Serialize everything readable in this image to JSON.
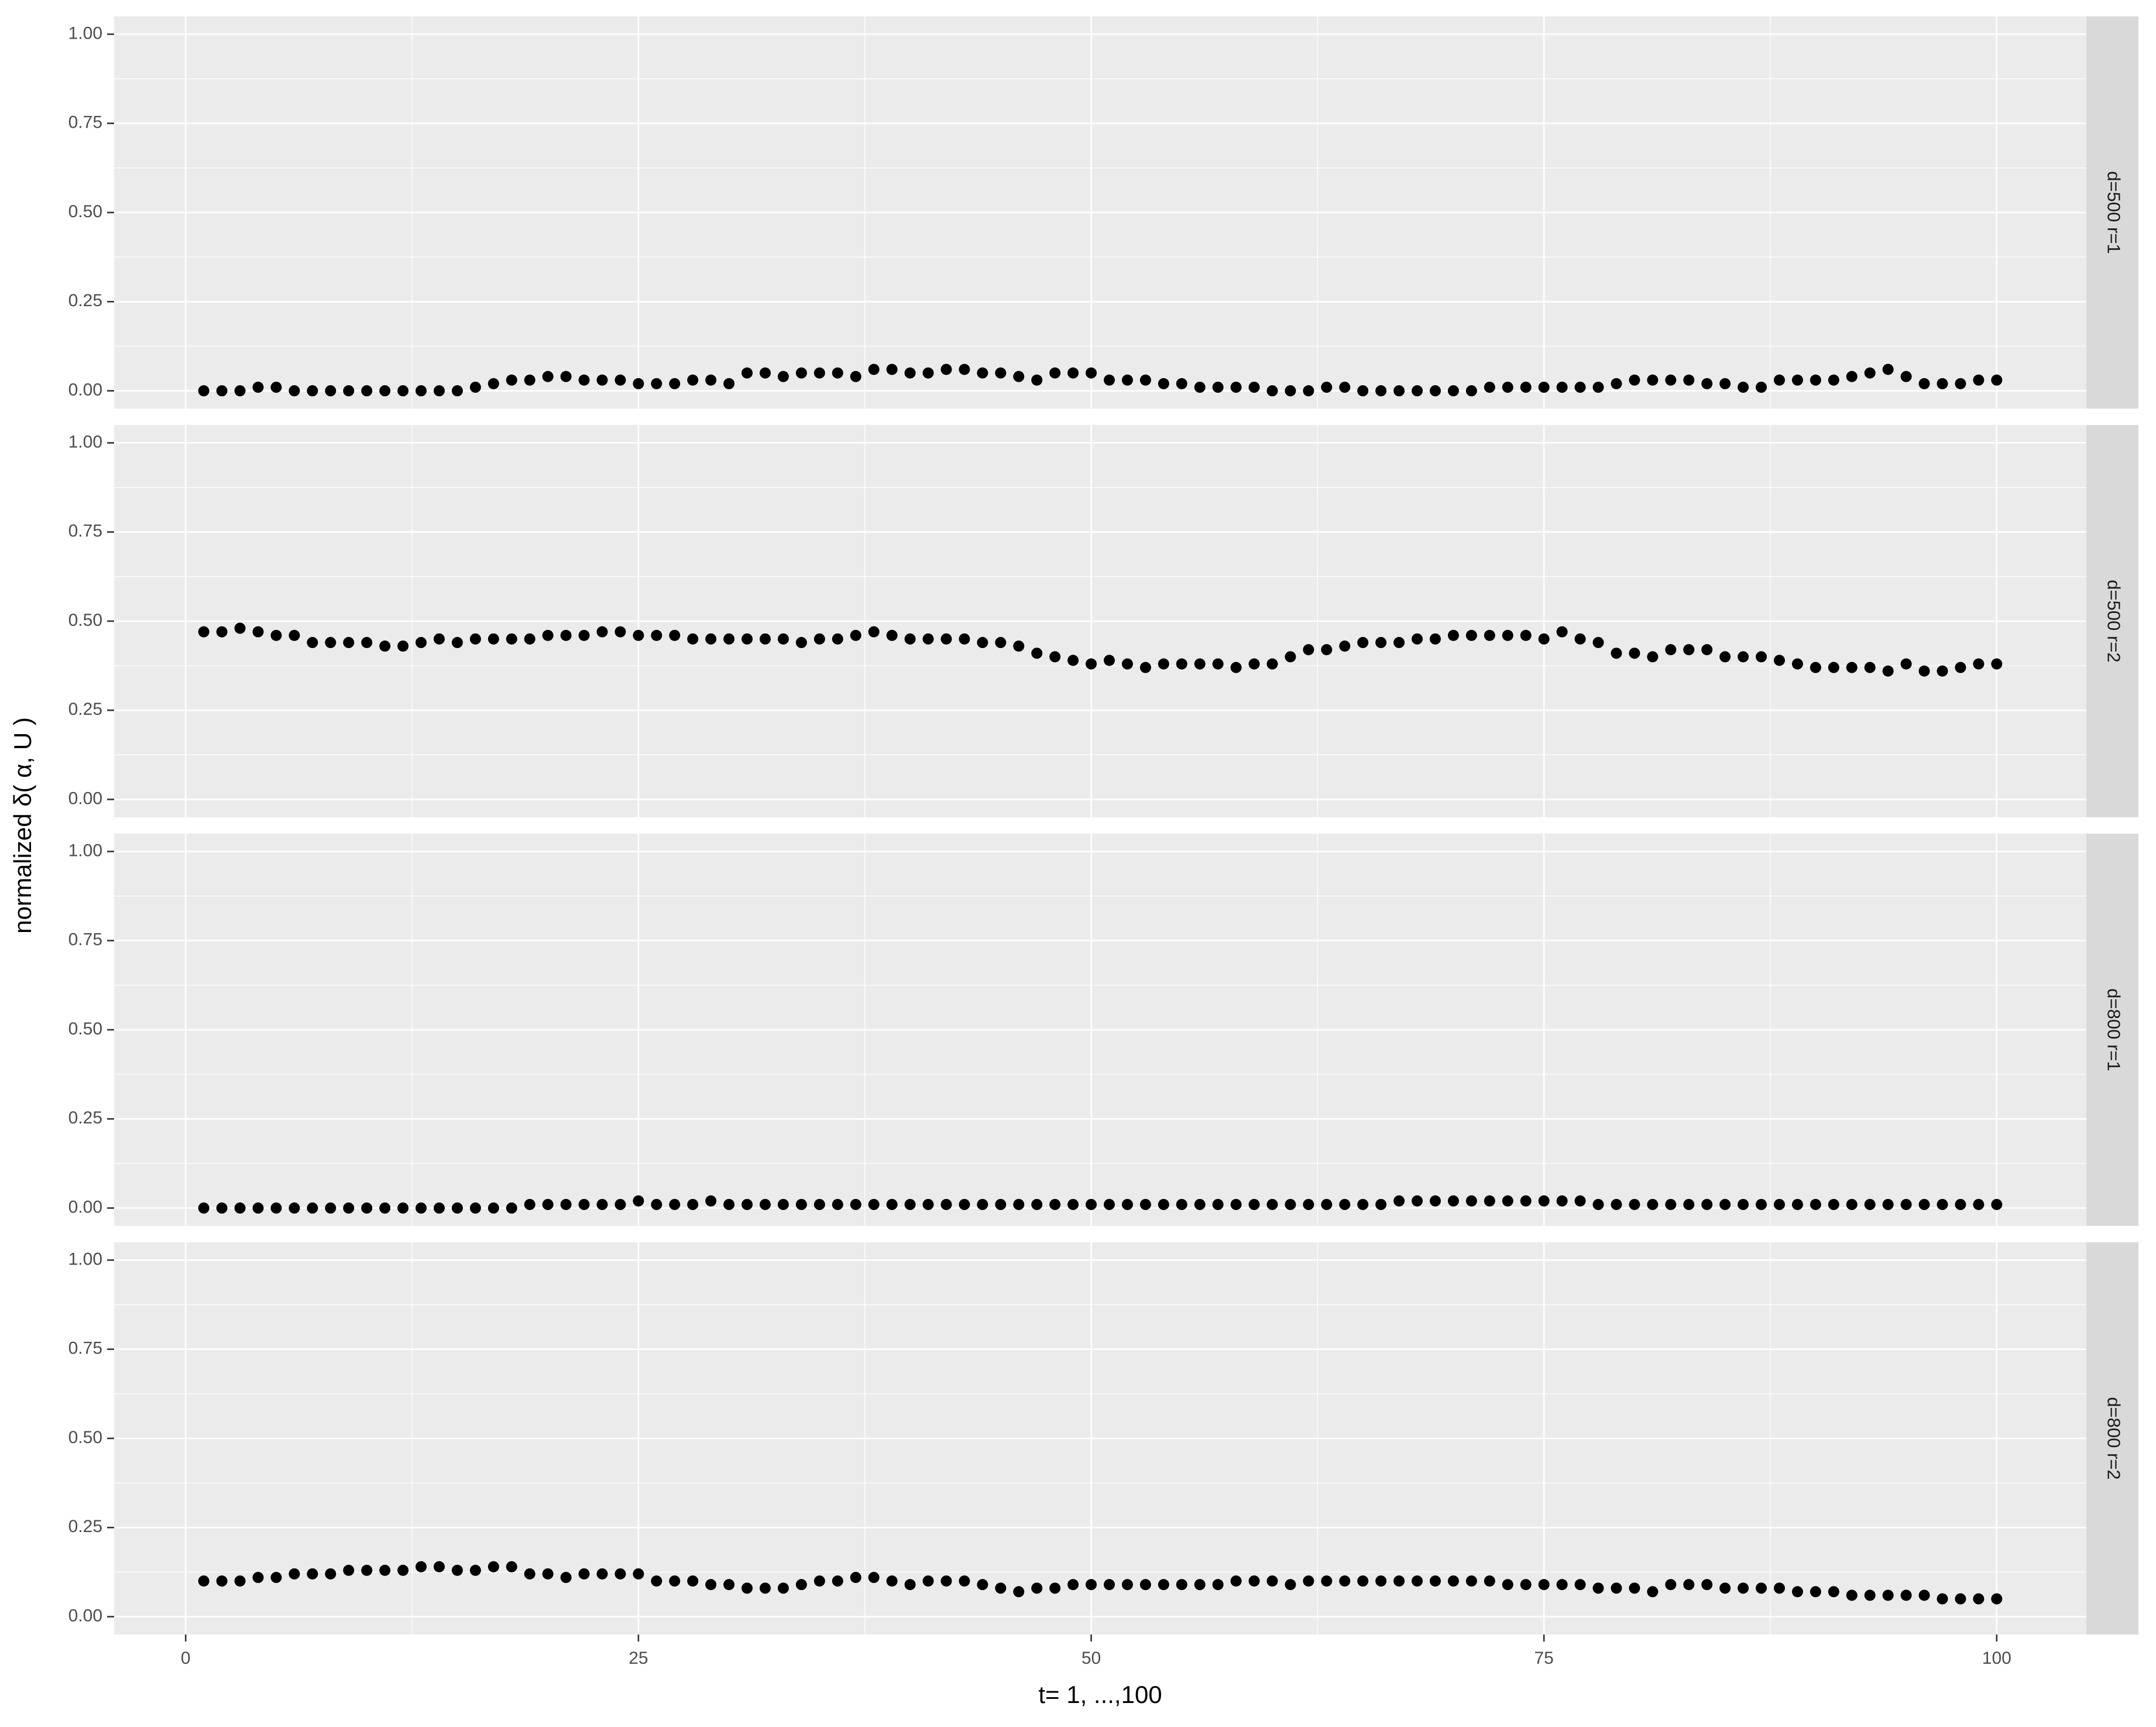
{
  "chart_data": {
    "type": "scatter",
    "xlabel": "t= 1, ...,100",
    "ylabel": "normalized δ( α, U )",
    "x": [
      1,
      2,
      3,
      4,
      5,
      6,
      7,
      8,
      9,
      10,
      11,
      12,
      13,
      14,
      15,
      16,
      17,
      18,
      19,
      20,
      21,
      22,
      23,
      24,
      25,
      26,
      27,
      28,
      29,
      30,
      31,
      32,
      33,
      34,
      35,
      36,
      37,
      38,
      39,
      40,
      41,
      42,
      43,
      44,
      45,
      46,
      47,
      48,
      49,
      50,
      51,
      52,
      53,
      54,
      55,
      56,
      57,
      58,
      59,
      60,
      61,
      62,
      63,
      64,
      65,
      66,
      67,
      68,
      69,
      70,
      71,
      72,
      73,
      74,
      75,
      76,
      77,
      78,
      79,
      80,
      81,
      82,
      83,
      84,
      85,
      86,
      87,
      88,
      89,
      90,
      91,
      92,
      93,
      94,
      95,
      96,
      97,
      98,
      99,
      100
    ],
    "xlim": [
      -3.95,
      104.95
    ],
    "xticks": [
      0,
      25,
      50,
      75,
      100
    ],
    "ylim": [
      -0.05,
      1.05
    ],
    "yticks": [
      {
        "value": 0,
        "label": "0.00"
      },
      {
        "value": 0.25,
        "label": "0.25"
      },
      {
        "value": 0.5,
        "label": "0.50"
      },
      {
        "value": 0.75,
        "label": "0.75"
      },
      {
        "value": 1,
        "label": "1.00"
      }
    ],
    "grid": true,
    "color": "#000000",
    "facets": [
      {
        "label": "d=500 r=1",
        "values": [
          0.0,
          0.0,
          0.0,
          0.01,
          0.01,
          0.0,
          0.0,
          0.0,
          0.0,
          0.0,
          0.0,
          0.0,
          0.0,
          0.0,
          0.0,
          0.01,
          0.02,
          0.03,
          0.03,
          0.04,
          0.04,
          0.03,
          0.03,
          0.03,
          0.02,
          0.02,
          0.02,
          0.03,
          0.03,
          0.02,
          0.05,
          0.05,
          0.04,
          0.05,
          0.05,
          0.05,
          0.04,
          0.06,
          0.06,
          0.05,
          0.05,
          0.06,
          0.06,
          0.05,
          0.05,
          0.04,
          0.03,
          0.05,
          0.05,
          0.05,
          0.03,
          0.03,
          0.03,
          0.02,
          0.02,
          0.01,
          0.01,
          0.01,
          0.01,
          0.0,
          0.0,
          0.0,
          0.01,
          0.01,
          0.0,
          0.0,
          0.0,
          0.0,
          0.0,
          0.0,
          0.0,
          0.01,
          0.01,
          0.01,
          0.01,
          0.01,
          0.01,
          0.01,
          0.02,
          0.03,
          0.03,
          0.03,
          0.03,
          0.02,
          0.02,
          0.01,
          0.01,
          0.03,
          0.03,
          0.03,
          0.03,
          0.04,
          0.05,
          0.06,
          0.04,
          0.02,
          0.02,
          0.02,
          0.03,
          0.03
        ]
      },
      {
        "label": "d=500 r=2",
        "values": [
          0.47,
          0.47,
          0.48,
          0.47,
          0.46,
          0.46,
          0.44,
          0.44,
          0.44,
          0.44,
          0.43,
          0.43,
          0.44,
          0.45,
          0.44,
          0.45,
          0.45,
          0.45,
          0.45,
          0.46,
          0.46,
          0.46,
          0.47,
          0.47,
          0.46,
          0.46,
          0.46,
          0.45,
          0.45,
          0.45,
          0.45,
          0.45,
          0.45,
          0.44,
          0.45,
          0.45,
          0.46,
          0.47,
          0.46,
          0.45,
          0.45,
          0.45,
          0.45,
          0.44,
          0.44,
          0.43,
          0.41,
          0.4,
          0.39,
          0.38,
          0.39,
          0.38,
          0.37,
          0.38,
          0.38,
          0.38,
          0.38,
          0.37,
          0.38,
          0.38,
          0.4,
          0.42,
          0.42,
          0.43,
          0.44,
          0.44,
          0.44,
          0.45,
          0.45,
          0.46,
          0.46,
          0.46,
          0.46,
          0.46,
          0.45,
          0.47,
          0.45,
          0.44,
          0.41,
          0.41,
          0.4,
          0.42,
          0.42,
          0.42,
          0.4,
          0.4,
          0.4,
          0.39,
          0.38,
          0.37,
          0.37,
          0.37,
          0.37,
          0.36,
          0.38,
          0.36,
          0.36,
          0.37,
          0.38,
          0.38
        ]
      },
      {
        "label": "d=800 r=1",
        "values": [
          0.0,
          0.0,
          0.0,
          0.0,
          0.0,
          0.0,
          0.0,
          0.0,
          0.0,
          0.0,
          0.0,
          0.0,
          0.0,
          0.0,
          0.0,
          0.0,
          0.0,
          0.0,
          0.01,
          0.01,
          0.01,
          0.01,
          0.01,
          0.01,
          0.02,
          0.01,
          0.01,
          0.01,
          0.02,
          0.01,
          0.01,
          0.01,
          0.01,
          0.01,
          0.01,
          0.01,
          0.01,
          0.01,
          0.01,
          0.01,
          0.01,
          0.01,
          0.01,
          0.01,
          0.01,
          0.01,
          0.01,
          0.01,
          0.01,
          0.01,
          0.01,
          0.01,
          0.01,
          0.01,
          0.01,
          0.01,
          0.01,
          0.01,
          0.01,
          0.01,
          0.01,
          0.01,
          0.01,
          0.01,
          0.01,
          0.01,
          0.02,
          0.02,
          0.02,
          0.02,
          0.02,
          0.02,
          0.02,
          0.02,
          0.02,
          0.02,
          0.02,
          0.01,
          0.01,
          0.01,
          0.01,
          0.01,
          0.01,
          0.01,
          0.01,
          0.01,
          0.01,
          0.01,
          0.01,
          0.01,
          0.01,
          0.01,
          0.01,
          0.01,
          0.01,
          0.01,
          0.01,
          0.01,
          0.01,
          0.01
        ]
      },
      {
        "label": "d=800 r=2",
        "values": [
          0.1,
          0.1,
          0.1,
          0.11,
          0.11,
          0.12,
          0.12,
          0.12,
          0.13,
          0.13,
          0.13,
          0.13,
          0.14,
          0.14,
          0.13,
          0.13,
          0.14,
          0.14,
          0.12,
          0.12,
          0.11,
          0.12,
          0.12,
          0.12,
          0.12,
          0.1,
          0.1,
          0.1,
          0.09,
          0.09,
          0.08,
          0.08,
          0.08,
          0.09,
          0.1,
          0.1,
          0.11,
          0.11,
          0.1,
          0.09,
          0.1,
          0.1,
          0.1,
          0.09,
          0.08,
          0.07,
          0.08,
          0.08,
          0.09,
          0.09,
          0.09,
          0.09,
          0.09,
          0.09,
          0.09,
          0.09,
          0.09,
          0.1,
          0.1,
          0.1,
          0.09,
          0.1,
          0.1,
          0.1,
          0.1,
          0.1,
          0.1,
          0.1,
          0.1,
          0.1,
          0.1,
          0.1,
          0.09,
          0.09,
          0.09,
          0.09,
          0.09,
          0.08,
          0.08,
          0.08,
          0.07,
          0.09,
          0.09,
          0.09,
          0.08,
          0.08,
          0.08,
          0.08,
          0.07,
          0.07,
          0.07,
          0.06,
          0.06,
          0.06,
          0.06,
          0.06,
          0.05,
          0.05,
          0.05,
          0.05
        ]
      }
    ]
  }
}
